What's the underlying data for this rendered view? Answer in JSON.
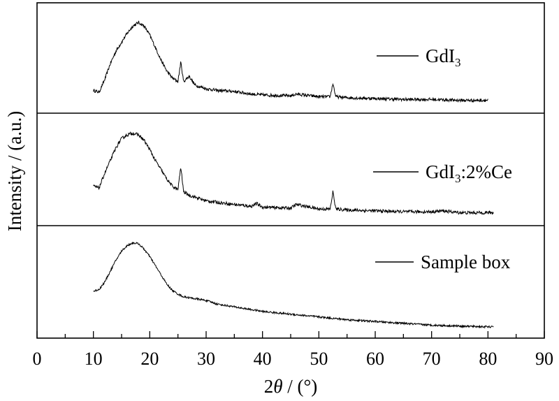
{
  "chart_data": {
    "type": "line",
    "xlabel_prefix": "2",
    "xlabel_theta": "θ",
    "xlabel_suffix": " / (°)",
    "ylabel": "Intensity / (a.u.)",
    "xlim": [
      0,
      90
    ],
    "xticks": [
      "0",
      "10",
      "20",
      "30",
      "40",
      "50",
      "60",
      "70",
      "80",
      "90"
    ],
    "stacked_panels": true,
    "grid": false,
    "legend_placement": "right of each panel",
    "series": [
      {
        "name_main": "GdI",
        "name_sub": "3",
        "name_tail": "",
        "x_range": [
          10,
          80
        ],
        "points": [
          [
            10,
            0.16
          ],
          [
            11,
            0.14
          ],
          [
            12,
            0.28
          ],
          [
            13,
            0.46
          ],
          [
            14,
            0.6
          ],
          [
            15,
            0.7
          ],
          [
            16,
            0.8
          ],
          [
            17,
            0.88
          ],
          [
            18,
            0.92
          ],
          [
            19,
            0.88
          ],
          [
            20,
            0.78
          ],
          [
            21,
            0.64
          ],
          [
            22,
            0.5
          ],
          [
            23,
            0.38
          ],
          [
            24,
            0.3
          ],
          [
            25,
            0.26
          ],
          [
            25.5,
            0.48
          ],
          [
            26,
            0.26
          ],
          [
            27,
            0.32
          ],
          [
            28,
            0.22
          ],
          [
            30,
            0.18
          ],
          [
            32,
            0.16
          ],
          [
            35,
            0.15
          ],
          [
            38,
            0.12
          ],
          [
            40,
            0.11
          ],
          [
            45,
            0.1
          ],
          [
            46,
            0.12
          ],
          [
            50,
            0.09
          ],
          [
            52,
            0.09
          ],
          [
            52.5,
            0.24
          ],
          [
            53,
            0.09
          ],
          [
            55,
            0.08
          ],
          [
            60,
            0.07
          ],
          [
            65,
            0.06
          ],
          [
            70,
            0.06
          ],
          [
            75,
            0.05
          ],
          [
            80,
            0.05
          ]
        ]
      },
      {
        "name_main": "GdI",
        "name_sub": "3",
        "name_tail": ":2%Ce",
        "x_range": [
          10,
          81
        ],
        "points": [
          [
            10,
            0.34
          ],
          [
            11,
            0.32
          ],
          [
            12,
            0.48
          ],
          [
            13,
            0.62
          ],
          [
            14,
            0.76
          ],
          [
            15,
            0.86
          ],
          [
            16,
            0.9
          ],
          [
            17,
            0.92
          ],
          [
            18,
            0.9
          ],
          [
            19,
            0.84
          ],
          [
            20,
            0.74
          ],
          [
            21,
            0.62
          ],
          [
            22,
            0.52
          ],
          [
            23,
            0.42
          ],
          [
            24,
            0.34
          ],
          [
            25,
            0.3
          ],
          [
            25.5,
            0.55
          ],
          [
            26,
            0.28
          ],
          [
            27,
            0.24
          ],
          [
            30,
            0.18
          ],
          [
            35,
            0.14
          ],
          [
            38,
            0.12
          ],
          [
            39,
            0.15
          ],
          [
            40,
            0.11
          ],
          [
            45,
            0.1
          ],
          [
            46,
            0.14
          ],
          [
            50,
            0.09
          ],
          [
            52,
            0.09
          ],
          [
            52.5,
            0.28
          ],
          [
            53,
            0.09
          ],
          [
            55,
            0.08
          ],
          [
            60,
            0.07
          ],
          [
            65,
            0.06
          ],
          [
            70,
            0.06
          ],
          [
            72,
            0.07
          ],
          [
            75,
            0.05
          ],
          [
            81,
            0.05
          ]
        ]
      },
      {
        "name_main": "Sample box",
        "name_sub": "",
        "name_tail": "",
        "x_range": [
          10,
          81
        ],
        "points": [
          [
            10,
            0.42
          ],
          [
            11,
            0.44
          ],
          [
            12,
            0.52
          ],
          [
            13,
            0.64
          ],
          [
            14,
            0.76
          ],
          [
            15,
            0.86
          ],
          [
            16,
            0.92
          ],
          [
            17,
            0.95
          ],
          [
            18,
            0.94
          ],
          [
            19,
            0.88
          ],
          [
            20,
            0.8
          ],
          [
            21,
            0.7
          ],
          [
            22,
            0.6
          ],
          [
            23,
            0.5
          ],
          [
            24,
            0.43
          ],
          [
            25,
            0.39
          ],
          [
            26,
            0.36
          ],
          [
            28,
            0.34
          ],
          [
            30,
            0.32
          ],
          [
            32,
            0.28
          ],
          [
            35,
            0.25
          ],
          [
            38,
            0.22
          ],
          [
            40,
            0.2
          ],
          [
            45,
            0.17
          ],
          [
            50,
            0.14
          ],
          [
            55,
            0.11
          ],
          [
            60,
            0.09
          ],
          [
            65,
            0.07
          ],
          [
            70,
            0.05
          ],
          [
            75,
            0.04
          ],
          [
            81,
            0.03
          ]
        ]
      }
    ]
  }
}
